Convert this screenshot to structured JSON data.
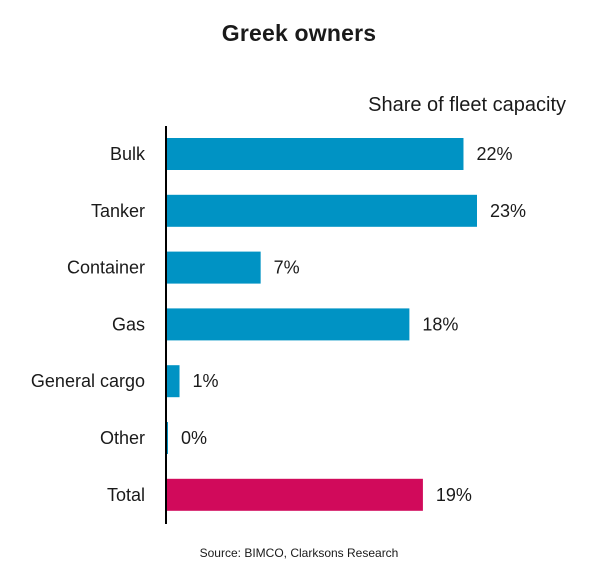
{
  "chart_data": {
    "type": "bar",
    "orientation": "horizontal",
    "title": "Greek owners",
    "subtitle": "Share of fleet capacity",
    "categories": [
      "Bulk",
      "Tanker",
      "Container",
      "Gas",
      "General cargo",
      "Other",
      "Total"
    ],
    "values": [
      22,
      23,
      7,
      18,
      1,
      0,
      19
    ],
    "value_labels": [
      "22%",
      "23%",
      "7%",
      "18%",
      "1%",
      "0%",
      "19%"
    ],
    "unit": "%",
    "xlim": [
      0,
      23
    ],
    "grid": false,
    "legend": "none",
    "colors": {
      "default": "#0093c4",
      "highlight": "#d10a5b",
      "axis": "#000000"
    },
    "highlight_category": "Total",
    "source": "Source: BIMCO, Clarksons Research"
  }
}
